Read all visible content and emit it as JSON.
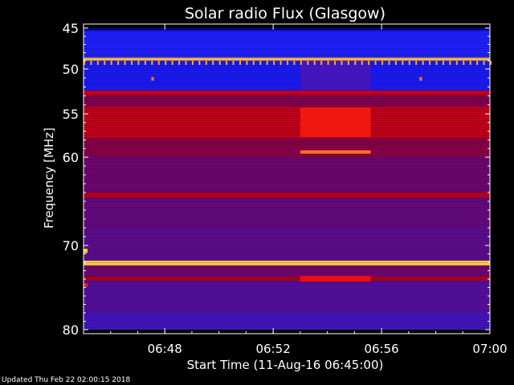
{
  "chart_data": {
    "type": "heatmap",
    "title": "Solar radio Flux (Glasgow)",
    "xlabel": "Start Time (11-Aug-16 06:45:00)",
    "ylabel": "Frequency [MHz]",
    "x_start_minutes": 0,
    "x_end_minutes": 15,
    "xlim_labels": [
      "06:45:00",
      "07:00:00"
    ],
    "ylim": [
      45,
      80
    ],
    "y_ticks": [
      45,
      50,
      55,
      60,
      70,
      80
    ],
    "x_ticks": [
      {
        "minute": 3,
        "label": "06:48"
      },
      {
        "minute": 7,
        "label": "06:52"
      },
      {
        "minute": 11,
        "label": "06:56"
      },
      {
        "minute": 15,
        "label": "07:00"
      }
    ],
    "colormap": [
      "#000050",
      "#0000c8",
      "#2020ff",
      "#5010a0",
      "#800050",
      "#b00020",
      "#e00010",
      "#ff3010",
      "#ff9020",
      "#ffe060"
    ],
    "bands": [
      {
        "from_mhz": 45.0,
        "to_mhz": 45.3,
        "level": 0.05
      },
      {
        "from_mhz": 45.3,
        "to_mhz": 48.6,
        "level": 0.22
      },
      {
        "from_mhz": 48.6,
        "to_mhz": 49.0,
        "level": 0.95
      },
      {
        "from_mhz": 49.0,
        "to_mhz": 52.4,
        "level": 0.2
      },
      {
        "from_mhz": 52.4,
        "to_mhz": 52.9,
        "level": 0.62
      },
      {
        "from_mhz": 52.9,
        "to_mhz": 54.2,
        "level": 0.45
      },
      {
        "from_mhz": 54.2,
        "to_mhz": 57.8,
        "level": 0.6
      },
      {
        "from_mhz": 57.8,
        "to_mhz": 60.0,
        "level": 0.46
      },
      {
        "from_mhz": 60.0,
        "to_mhz": 64.0,
        "level": 0.4
      },
      {
        "from_mhz": 64.0,
        "to_mhz": 64.6,
        "level": 0.58
      },
      {
        "from_mhz": 64.6,
        "to_mhz": 68.0,
        "level": 0.38
      },
      {
        "from_mhz": 68.0,
        "to_mhz": 71.8,
        "level": 0.36
      },
      {
        "from_mhz": 71.8,
        "to_mhz": 72.4,
        "level": 0.97
      },
      {
        "from_mhz": 72.4,
        "to_mhz": 73.7,
        "level": 0.4
      },
      {
        "from_mhz": 73.7,
        "to_mhz": 74.2,
        "level": 0.55
      },
      {
        "from_mhz": 74.2,
        "to_mhz": 78.0,
        "level": 0.34
      },
      {
        "from_mhz": 78.0,
        "to_mhz": 80.0,
        "level": 0.3
      }
    ],
    "features": [
      {
        "t0_min": 8.0,
        "t1_min": 10.6,
        "from_mhz": 49.0,
        "to_mhz": 52.3,
        "level": 0.3
      },
      {
        "t0_min": 8.0,
        "t1_min": 10.6,
        "from_mhz": 54.3,
        "to_mhz": 57.7,
        "level": 0.72
      },
      {
        "t0_min": 8.0,
        "t1_min": 10.6,
        "from_mhz": 59.2,
        "to_mhz": 59.6,
        "level": 0.85
      },
      {
        "t0_min": 8.0,
        "t1_min": 10.6,
        "from_mhz": 73.6,
        "to_mhz": 74.3,
        "level": 0.7
      },
      {
        "t0_min": 2.5,
        "t1_min": 2.6,
        "from_mhz": 50.9,
        "to_mhz": 51.3,
        "level": 0.85
      },
      {
        "t0_min": 12.4,
        "t1_min": 12.5,
        "from_mhz": 50.9,
        "to_mhz": 51.3,
        "level": 0.85
      },
      {
        "t0_min": 0.0,
        "t1_min": 0.15,
        "from_mhz": 70.4,
        "to_mhz": 70.9,
        "level": 0.97
      },
      {
        "t0_min": 0.0,
        "t1_min": 0.15,
        "from_mhz": 74.5,
        "to_mhz": 74.9,
        "level": 0.75
      }
    ],
    "tick_row_mhz": [
      49.0,
      49.5
    ],
    "tick_row_spacing_min": 0.25,
    "grid": false
  },
  "footer": {
    "updated_text": "Updated Thu Feb 22 02:00:15 2018"
  },
  "colors": {
    "background": "#000000",
    "text": "#ffffff",
    "axis": "#ffffff"
  }
}
